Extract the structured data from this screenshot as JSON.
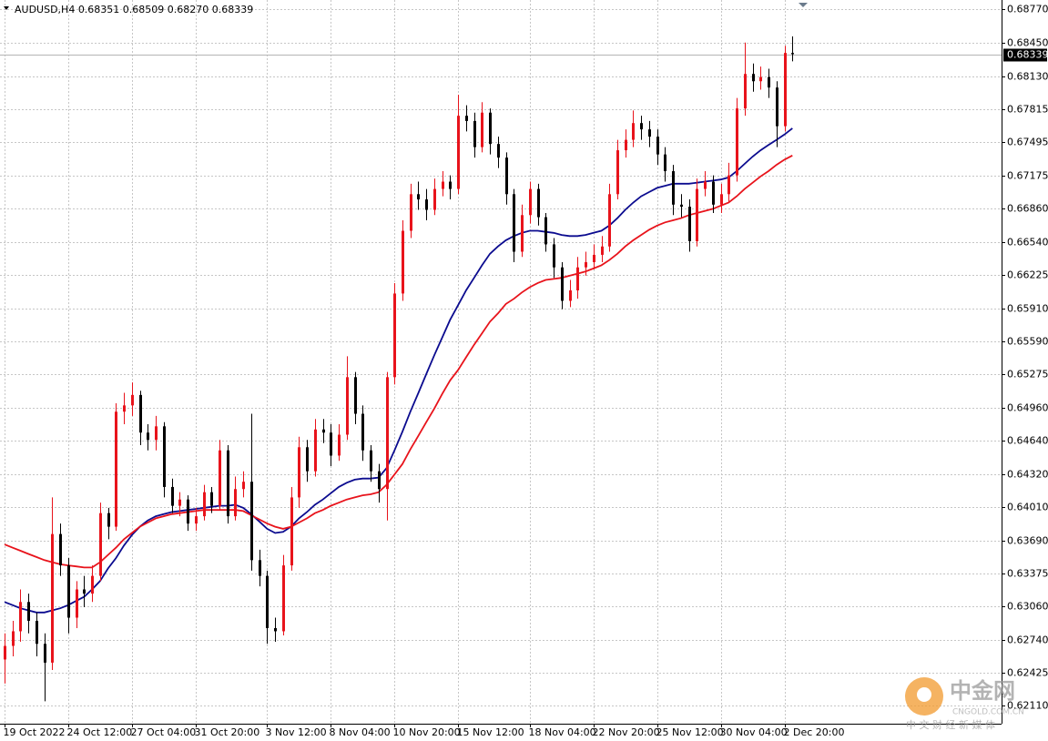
{
  "chart_data": {
    "type": "candlestick",
    "title": "AUDUSD,H4  0.68351 0.68509 0.68270 0.68339",
    "categories": [
      "19 Oct 2022",
      null,
      null,
      null,
      null,
      null,
      null,
      null,
      "24 Oct 12:00",
      null,
      null,
      null,
      null,
      null,
      null,
      null,
      "27 Oct 04:00",
      null,
      null,
      null,
      null,
      null,
      null,
      null,
      "31 Oct 20:00",
      null,
      null,
      null,
      null,
      null,
      null,
      null,
      null,
      "3 Nov 12:00",
      null,
      null,
      null,
      null,
      null,
      null,
      null,
      "8 Nov 04:00",
      null,
      null,
      null,
      null,
      null,
      null,
      null,
      "10 Nov 20:00",
      null,
      null,
      null,
      null,
      null,
      null,
      null,
      "15 Nov 12:00",
      null,
      null,
      null,
      null,
      null,
      null,
      null,
      null,
      "18 Nov 04:00",
      null,
      null,
      null,
      null,
      null,
      null,
      null,
      "22 Nov 20:00",
      null,
      null,
      null,
      null,
      null,
      null,
      null,
      "25 Nov 12:00",
      null,
      null,
      null,
      null,
      null,
      null,
      null,
      "30 Nov 04:00",
      null,
      null,
      null,
      null,
      null,
      null,
      null,
      "2 Dec 20:00",
      null
    ],
    "open": [
      0.6255,
      0.6268,
      0.6282,
      0.631,
      0.6292,
      0.627,
      0.6252,
      0.6375,
      0.6345,
      0.6295,
      0.6322,
      0.6318,
      0.6335,
      0.6395,
      0.6382,
      0.6492,
      0.6498,
      0.6508,
      0.6472,
      0.6465,
      0.6478,
      0.642,
      0.6402,
      0.6408,
      0.6385,
      0.6392,
      0.6415,
      0.6402,
      0.6455,
      0.6392,
      0.6418,
      0.6425,
      0.635,
      0.6335,
      0.6285,
      0.6282,
      0.6345,
      0.641,
      0.6458,
      0.6435,
      0.6475,
      0.6472,
      0.645,
      0.647,
      0.6525,
      0.649,
      0.6455,
      0.6435,
      0.6418,
      0.6525,
      0.6605,
      0.6665,
      0.67,
      0.6695,
      0.6685,
      0.6705,
      0.6712,
      0.6705,
      0.6775,
      0.677,
      0.6745,
      0.6778,
      0.6748,
      0.6735,
      0.67,
      0.6645,
      0.668,
      0.6705,
      0.6678,
      0.6652,
      0.663,
      0.6598,
      0.6608,
      0.663,
      0.6635,
      0.6642,
      0.665,
      0.67,
      0.6742,
      0.6752,
      0.6768,
      0.6762,
      0.6755,
      0.6738,
      0.6722,
      0.669,
      0.6688,
      0.6655,
      0.6705,
      0.6712,
      0.669,
      0.67,
      0.6718,
      0.6782,
      0.6815,
      0.6808,
      0.6812,
      0.6802,
      0.6765,
      0.68351
    ],
    "high": [
      0.628,
      0.6292,
      0.6322,
      0.6318,
      0.63,
      0.628,
      0.641,
      0.6385,
      0.6352,
      0.633,
      0.6335,
      0.6345,
      0.6405,
      0.64,
      0.65,
      0.651,
      0.652,
      0.6512,
      0.648,
      0.6488,
      0.6482,
      0.6428,
      0.6415,
      0.6412,
      0.64,
      0.6422,
      0.642,
      0.6465,
      0.646,
      0.643,
      0.6435,
      0.649,
      0.636,
      0.634,
      0.6295,
      0.6355,
      0.642,
      0.6468,
      0.6465,
      0.6485,
      0.6485,
      0.648,
      0.648,
      0.6545,
      0.653,
      0.6498,
      0.646,
      0.6442,
      0.653,
      0.6615,
      0.6675,
      0.671,
      0.6712,
      0.6705,
      0.6715,
      0.6722,
      0.6718,
      0.6795,
      0.6785,
      0.6778,
      0.6788,
      0.6782,
      0.6755,
      0.674,
      0.6705,
      0.669,
      0.6712,
      0.671,
      0.6682,
      0.6658,
      0.6635,
      0.6618,
      0.664,
      0.6645,
      0.6652,
      0.666,
      0.671,
      0.6752,
      0.6762,
      0.678,
      0.6775,
      0.677,
      0.6762,
      0.6745,
      0.6728,
      0.67,
      0.6695,
      0.6715,
      0.6722,
      0.6718,
      0.671,
      0.673,
      0.6792,
      0.6845,
      0.6825,
      0.6822,
      0.682,
      0.6808,
      0.6842,
      0.68509
    ],
    "low": [
      0.6232,
      0.6258,
      0.6272,
      0.628,
      0.6258,
      0.6215,
      0.6245,
      0.6335,
      0.628,
      0.6285,
      0.6305,
      0.631,
      0.633,
      0.637,
      0.6378,
      0.648,
      0.6488,
      0.646,
      0.6455,
      0.6455,
      0.641,
      0.6395,
      0.6392,
      0.6378,
      0.6378,
      0.6388,
      0.6395,
      0.6398,
      0.6385,
      0.6388,
      0.641,
      0.634,
      0.6325,
      0.627,
      0.6272,
      0.6278,
      0.634,
      0.64,
      0.6425,
      0.643,
      0.6462,
      0.644,
      0.6445,
      0.6465,
      0.648,
      0.6445,
      0.6425,
      0.6405,
      0.6388,
      0.6518,
      0.6598,
      0.6658,
      0.6685,
      0.6675,
      0.668,
      0.6698,
      0.6695,
      0.67,
      0.676,
      0.6735,
      0.674,
      0.6738,
      0.6725,
      0.669,
      0.6635,
      0.664,
      0.6672,
      0.667,
      0.6645,
      0.662,
      0.659,
      0.6592,
      0.66,
      0.6622,
      0.6628,
      0.6635,
      0.6645,
      0.6695,
      0.6735,
      0.6745,
      0.6752,
      0.6745,
      0.6728,
      0.6712,
      0.668,
      0.6678,
      0.6645,
      0.665,
      0.6698,
      0.6682,
      0.6682,
      0.6692,
      0.6712,
      0.6775,
      0.6798,
      0.68,
      0.6792,
      0.6745,
      0.676,
      0.6827
    ],
    "close": [
      0.6268,
      0.6282,
      0.631,
      0.6292,
      0.627,
      0.6252,
      0.6375,
      0.6345,
      0.6295,
      0.6322,
      0.6318,
      0.6335,
      0.6395,
      0.6382,
      0.6492,
      0.6498,
      0.6508,
      0.6472,
      0.6465,
      0.6478,
      0.642,
      0.6402,
      0.6408,
      0.6385,
      0.6392,
      0.6415,
      0.6402,
      0.6455,
      0.6392,
      0.6418,
      0.6425,
      0.635,
      0.6335,
      0.6285,
      0.6282,
      0.6345,
      0.641,
      0.6458,
      0.6435,
      0.6475,
      0.6472,
      0.645,
      0.647,
      0.6525,
      0.649,
      0.6455,
      0.6435,
      0.6418,
      0.6525,
      0.6605,
      0.6665,
      0.67,
      0.6695,
      0.6685,
      0.6705,
      0.6712,
      0.6705,
      0.6775,
      0.677,
      0.6745,
      0.6778,
      0.6748,
      0.6735,
      0.67,
      0.6645,
      0.668,
      0.6705,
      0.6678,
      0.6652,
      0.663,
      0.6598,
      0.6608,
      0.663,
      0.6635,
      0.6642,
      0.665,
      0.67,
      0.6742,
      0.6752,
      0.6768,
      0.6762,
      0.6755,
      0.6738,
      0.6722,
      0.669,
      0.6688,
      0.6655,
      0.6705,
      0.6712,
      0.669,
      0.67,
      0.6718,
      0.6782,
      0.6815,
      0.6808,
      0.6812,
      0.6802,
      0.6765,
      0.68351,
      0.68339
    ],
    "up_color": "#e8131b",
    "down_color": "#000000",
    "moving_averages": [
      {
        "color": "#0b0b8f",
        "values": [
          0.631,
          0.6307,
          0.6304,
          0.6302,
          0.63,
          0.63,
          0.6302,
          0.6304,
          0.6307,
          0.6311,
          0.6315,
          0.6322,
          0.633,
          0.6342,
          0.6352,
          0.6364,
          0.6374,
          0.6382,
          0.6388,
          0.6392,
          0.6394,
          0.6396,
          0.6397,
          0.6398,
          0.6399,
          0.64,
          0.6401,
          0.6402,
          0.6402,
          0.6403,
          0.64,
          0.6394,
          0.6387,
          0.638,
          0.6376,
          0.6377,
          0.6382,
          0.639,
          0.6396,
          0.6403,
          0.6408,
          0.6414,
          0.642,
          0.6424,
          0.6427,
          0.6428,
          0.6428,
          0.6429,
          0.6438,
          0.6455,
          0.6473,
          0.6492,
          0.651,
          0.6528,
          0.6546,
          0.6563,
          0.658,
          0.6594,
          0.6608,
          0.662,
          0.6632,
          0.6643,
          0.665,
          0.6656,
          0.666,
          0.6663,
          0.6665,
          0.6665,
          0.6664,
          0.6663,
          0.6661,
          0.666,
          0.666,
          0.6661,
          0.6663,
          0.6665,
          0.667,
          0.6677,
          0.6685,
          0.6692,
          0.6698,
          0.6702,
          0.6706,
          0.6708,
          0.671,
          0.671,
          0.671,
          0.6711,
          0.6712,
          0.6713,
          0.6714,
          0.6716,
          0.6722,
          0.6729,
          0.6736,
          0.6742,
          0.6747,
          0.6752,
          0.6757,
          0.6763
        ]
      },
      {
        "color": "#e8131b",
        "values": [
          0.6365,
          0.6362,
          0.6359,
          0.6356,
          0.6353,
          0.635,
          0.6348,
          0.6346,
          0.6345,
          0.6344,
          0.6343,
          0.6343,
          0.6348,
          0.6355,
          0.6362,
          0.637,
          0.6376,
          0.6382,
          0.6386,
          0.639,
          0.6392,
          0.6394,
          0.6395,
          0.6396,
          0.6397,
          0.6398,
          0.6398,
          0.6398,
          0.6398,
          0.6398,
          0.6397,
          0.6393,
          0.6389,
          0.6385,
          0.6382,
          0.638,
          0.6382,
          0.6386,
          0.639,
          0.6395,
          0.6398,
          0.6402,
          0.6405,
          0.6408,
          0.641,
          0.6412,
          0.6413,
          0.6415,
          0.6422,
          0.6432,
          0.6442,
          0.6456,
          0.6469,
          0.6482,
          0.6495,
          0.6509,
          0.6522,
          0.6532,
          0.6544,
          0.6556,
          0.6567,
          0.6578,
          0.6586,
          0.6595,
          0.66,
          0.6606,
          0.6611,
          0.6615,
          0.6618,
          0.6619,
          0.662,
          0.6622,
          0.6624,
          0.6626,
          0.6629,
          0.6632,
          0.6637,
          0.6643,
          0.665,
          0.6656,
          0.6661,
          0.6666,
          0.667,
          0.6673,
          0.6675,
          0.6677,
          0.668,
          0.6682,
          0.6684,
          0.6686,
          0.6689,
          0.6692,
          0.6698,
          0.6705,
          0.6711,
          0.6717,
          0.6722,
          0.6728,
          0.6733,
          0.6737
        ]
      }
    ],
    "ylim": [
      0.61936,
      0.68857
    ],
    "yticks": [
      {
        "value": 0.6877,
        "label": "0.68770"
      },
      {
        "value": 0.6845,
        "label": "0.68450"
      },
      {
        "value": 0.6813,
        "label": "0.68130"
      },
      0.67815,
      0.67495,
      0.67175,
      {
        "value": 0.6686,
        "label": "0.66860"
      },
      {
        "value": 0.6654,
        "label": "0.66540"
      },
      0.66225,
      {
        "value": 0.6591,
        "label": "0.65910"
      },
      {
        "value": 0.6559,
        "label": "0.65590"
      },
      0.65275,
      {
        "value": 0.6496,
        "label": "0.64960"
      },
      {
        "value": 0.6464,
        "label": "0.64640"
      },
      {
        "value": 0.6432,
        "label": "0.64320"
      },
      {
        "value": 0.6401,
        "label": "0.64010"
      },
      {
        "value": 0.6369,
        "label": "0.63690"
      },
      0.63375,
      {
        "value": 0.6306,
        "label": "0.63060"
      },
      {
        "value": 0.6274,
        "label": "0.62740"
      },
      0.62425,
      {
        "value": 0.6211,
        "label": "0.62110"
      }
    ],
    "grid": true,
    "watermark": {
      "logo_text": "中金网",
      "site": "CNGOLD.COM.CN",
      "slogan": "中 文 财 经 新 媒 体"
    }
  }
}
